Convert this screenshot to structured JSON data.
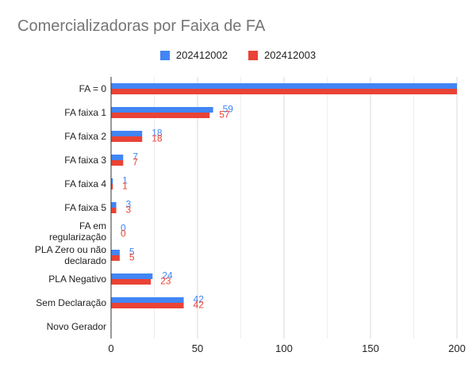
{
  "colors": {
    "series1": "#4285f4",
    "series2": "#ea4335",
    "grid": "#d9d9d9",
    "axis": "#333333"
  },
  "chart_data": {
    "type": "bar",
    "orientation": "horizontal",
    "title": "Comercializadoras por Faixa de FA",
    "categories": [
      [
        "FA = 0"
      ],
      [
        "FA faixa 1"
      ],
      [
        "FA faixa 2"
      ],
      [
        "FA faixa 3"
      ],
      [
        "FA faixa 4"
      ],
      [
        "FA faixa 5"
      ],
      [
        "FA em",
        "regularização"
      ],
      [
        "PLA Zero ou não",
        "declarado"
      ],
      [
        "PLA Negativo"
      ],
      [
        "Sem Declaração"
      ],
      [
        "Novo Gerador"
      ]
    ],
    "series": [
      {
        "name": "202412002",
        "values": [
          200,
          59,
          18,
          7,
          1,
          3,
          0,
          5,
          24,
          42,
          null
        ],
        "labels": [
          "",
          "59",
          "18",
          "7",
          "1",
          "3",
          "0",
          "5",
          "24",
          "42",
          ""
        ]
      },
      {
        "name": "202412003",
        "values": [
          200,
          57,
          18,
          7,
          1,
          3,
          0,
          5,
          23,
          42,
          null
        ],
        "labels": [
          "",
          "57",
          "18",
          "7",
          "1",
          "3",
          "0",
          "5",
          "23",
          "42",
          ""
        ]
      }
    ],
    "xlim": [
      0,
      200
    ],
    "xticks": [
      0,
      50,
      100,
      150,
      200
    ],
    "grid": true,
    "legend_position": "top"
  }
}
